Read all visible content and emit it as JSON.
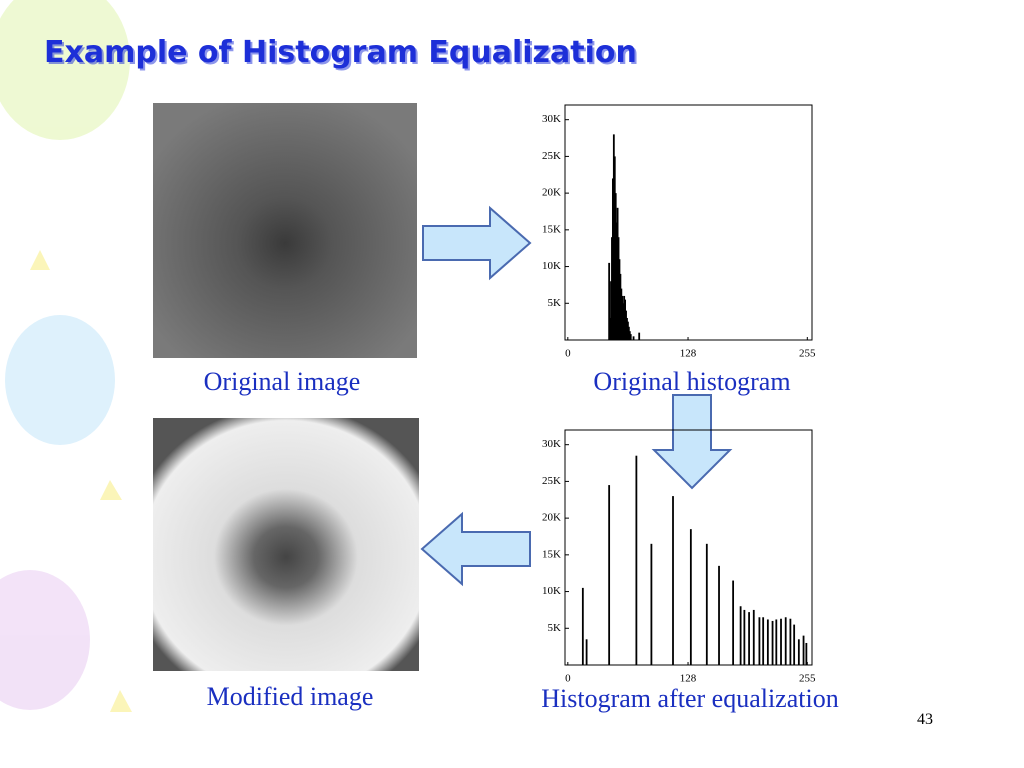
{
  "title": "Example of Histogram Equalization",
  "captions": [
    "Original image",
    "Original histogram",
    "Modified image",
    "Histogram after equalization"
  ],
  "page_number": "43",
  "chart_data": [
    {
      "type": "bar",
      "x": [
        44,
        45,
        46,
        47,
        48,
        49,
        50,
        51,
        52,
        53,
        54,
        55,
        56,
        57,
        58,
        59,
        60,
        61,
        62,
        63,
        64,
        65,
        66,
        67,
        70,
        76
      ],
      "values": [
        10500,
        3000,
        8000,
        14000,
        22000,
        28000,
        25000,
        20000,
        16000,
        18000,
        14000,
        11000,
        9000,
        7000,
        6000,
        5000,
        6000,
        5500,
        4000,
        3000,
        2500,
        1800,
        1200,
        800,
        500,
        1000
      ],
      "color": "#000000",
      "xlim": [
        -3,
        260
      ],
      "xticks": [
        0,
        128,
        255
      ],
      "ylim": [
        0,
        32000
      ],
      "yticks": [
        {
          "value": 5000,
          "label": "5K"
        },
        {
          "value": 10000,
          "label": "10K"
        },
        {
          "value": 15000,
          "label": "15K"
        },
        {
          "value": 20000,
          "label": "20K"
        },
        {
          "value": 25000,
          "label": "25K"
        },
        {
          "value": 30000,
          "label": "30K"
        }
      ]
    },
    {
      "type": "bar",
      "x": [
        16,
        20,
        44,
        73,
        89,
        112,
        131,
        148,
        161,
        176,
        184,
        188,
        193,
        198,
        204,
        208,
        213,
        218,
        222,
        227,
        232,
        237,
        241,
        246,
        251,
        254
      ],
      "values": [
        10500,
        3500,
        24500,
        28500,
        16500,
        23000,
        18500,
        16500,
        13500,
        11500,
        8000,
        7500,
        7200,
        7500,
        6500,
        6500,
        6200,
        6000,
        6200,
        6300,
        6500,
        6300,
        5500,
        3500,
        4000,
        3000
      ],
      "color": "#000000",
      "xlim": [
        -3,
        260
      ],
      "xticks": [
        0,
        128,
        255
      ],
      "ylim": [
        0,
        32000
      ],
      "yticks": [
        {
          "value": 5000,
          "label": "5K"
        },
        {
          "value": 10000,
          "label": "10K"
        },
        {
          "value": 15000,
          "label": "15K"
        },
        {
          "value": 20000,
          "label": "20K"
        },
        {
          "value": 25000,
          "label": "25K"
        },
        {
          "value": 30000,
          "label": "30K"
        }
      ]
    }
  ]
}
